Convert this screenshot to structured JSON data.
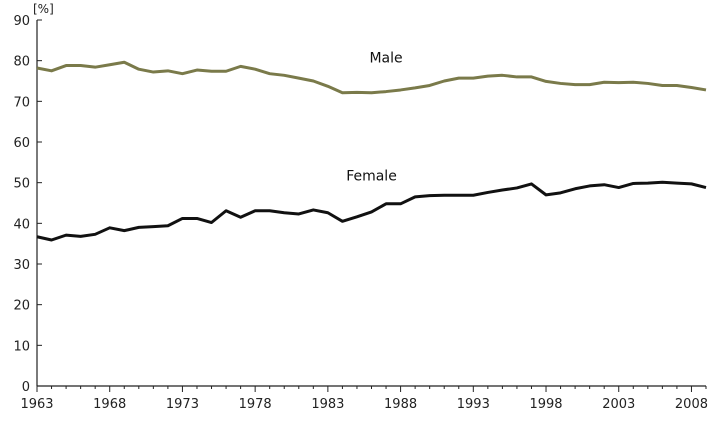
{
  "chart_data": {
    "type": "line",
    "unit_label": "[%]",
    "xlabel": "",
    "ylabel": "",
    "xlim": [
      1963,
      2009
    ],
    "ylim": [
      0,
      90
    ],
    "x_ticks": [
      1963,
      1968,
      1973,
      1978,
      1983,
      1988,
      1993,
      1998,
      2003,
      2008
    ],
    "y_ticks": [
      0,
      10,
      20,
      30,
      40,
      50,
      60,
      70,
      80,
      90
    ],
    "grid": false,
    "x": [
      1963,
      1964,
      1965,
      1966,
      1967,
      1968,
      1969,
      1970,
      1971,
      1972,
      1973,
      1974,
      1975,
      1976,
      1977,
      1978,
      1979,
      1980,
      1981,
      1982,
      1983,
      1984,
      1985,
      1986,
      1987,
      1988,
      1989,
      1990,
      1991,
      1992,
      1993,
      1994,
      1995,
      1996,
      1997,
      1998,
      1999,
      2000,
      2001,
      2002,
      2003,
      2004,
      2005,
      2006,
      2007,
      2008,
      2009
    ],
    "series": [
      {
        "name": "Male",
        "color": "#7a7a4a",
        "values": [
          78.2,
          77.5,
          78.8,
          78.8,
          78.4,
          79.0,
          79.6,
          77.9,
          77.2,
          77.5,
          76.8,
          77.7,
          77.4,
          77.4,
          78.6,
          77.9,
          76.8,
          76.4,
          75.7,
          75.0,
          73.7,
          72.1,
          72.2,
          72.1,
          72.4,
          72.8,
          73.3,
          73.9,
          75.0,
          75.7,
          75.7,
          76.2,
          76.4,
          76.0,
          76.0,
          74.9,
          74.4,
          74.1,
          74.1,
          74.7,
          74.6,
          74.7,
          74.4,
          73.9,
          73.9,
          73.4,
          72.8
        ],
        "label_x": 1987,
        "label_y": 79.5
      },
      {
        "name": "Female",
        "color": "#111111",
        "values": [
          36.7,
          35.9,
          37.1,
          36.8,
          37.3,
          38.9,
          38.2,
          39.0,
          39.2,
          39.4,
          41.2,
          41.2,
          40.2,
          43.1,
          41.5,
          43.1,
          43.1,
          42.6,
          42.3,
          43.3,
          42.6,
          40.5,
          41.6,
          42.8,
          44.8,
          44.8,
          46.5,
          46.8,
          46.9,
          46.9,
          46.9,
          47.6,
          48.2,
          48.7,
          49.7,
          47.0,
          47.5,
          48.5,
          49.2,
          49.5,
          48.8,
          49.8,
          49.9,
          50.1,
          49.9,
          49.7,
          48.8
        ],
        "label_x": 1986,
        "label_y": 50.5
      }
    ]
  }
}
